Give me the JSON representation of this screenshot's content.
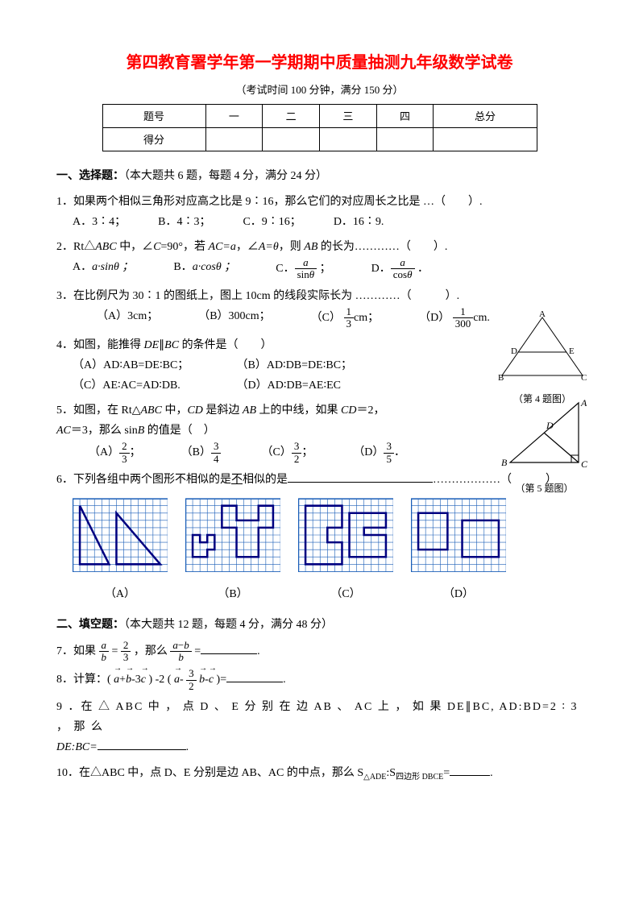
{
  "title": "第四教育署学年第一学期期中质量抽测九年级数学试卷",
  "subtitle": "（考试时间 100 分钟，满分 150 分）",
  "score_table": {
    "headers": [
      "题号",
      "一",
      "二",
      "三",
      "四",
      "总分"
    ],
    "row_label": "得分"
  },
  "section1": {
    "head": "一、选择题：",
    "desc": "（本大题共 6 题，每题 4 分，满分 24 分）",
    "q1": {
      "text": "1．如果两个相似三角形对应高之比是 9∶16，那么它们的对应周长之比是 …（　　）.",
      "opts": [
        "A．3∶4；",
        "B．4∶3；",
        "C．9∶16；",
        "D．16∶9."
      ]
    },
    "q2": {
      "text_a": "2．Rt△",
      "text_b": " 中，∠",
      "text_c": "=90°，若 ",
      "text_d": "，∠",
      "text_e": "，则 ",
      "text_f": " 的长为…………（　　）.",
      "AC_eq_a": "AC=a",
      "A_eq_theta": "A=θ",
      "optA": "A．",
      "optA_val": "a·sinθ ；",
      "optB": "B．",
      "optB_val": "a·cosθ ；",
      "optC": "C．",
      "optD": "D．"
    },
    "q3": {
      "text": "3．在比例尺为 30∶1 的图纸上，图上 10cm 的线段实际长为 …………（　　　）.",
      "optA": "（A）3cm；",
      "optB": "（B）300cm；",
      "optC": "（C）",
      "optD": "（D）",
      "c_suffix": "cm；",
      "d_suffix": "cm."
    },
    "q4": {
      "text": "4．如图，能推得 DE∥BC 的条件是（　　）",
      "opts": [
        "（A）AD∶AB=DE∶BC；",
        "（B）AD∶DB=DE∶BC；",
        "（C）AE∶AC=AD∶DB.",
        "（D）AD∶DB=AE∶EC"
      ],
      "caption": "（第 4 题图）",
      "labels": {
        "A": "A",
        "B": "B",
        "C": "C",
        "D": "D",
        "E": "E"
      }
    },
    "q5": {
      "text_a": "5．如图，在 Rt△",
      "text_b": " 中，",
      "text_c": " 是斜边 ",
      "text_d": " 上的中线，如果 ",
      "text_e": "＝2，",
      "line2_a": "＝3，那么 sin",
      "line2_b": " 的值是（　）",
      "ABC": "ABC",
      "CD": "CD",
      "AB": "AB",
      "CD2": "CD",
      "AC": "AC",
      "B": "B",
      "optA": "（A）",
      "optB": "（B）",
      "optC": "（C）",
      "optD": "（D）",
      "suffix": "；",
      "suffixEnd": "．",
      "caption": "（第 5 题图）",
      "labels": {
        "A": "A",
        "B": "B",
        "C": "C",
        "D": "D"
      }
    },
    "q6": {
      "text": "6．下列各组中两个图形不相似的是",
      "dots": "………………（　　　）",
      "letters": [
        "（A）",
        "（B）",
        "（C）",
        "（D）"
      ],
      "grid": {
        "cols": 13,
        "rows": 10,
        "cell": 9,
        "stroke_grid": "#1a5eb8",
        "stroke_shape": "#000080",
        "shape_width": 2.5
      }
    }
  },
  "section2": {
    "head": "二、填空题：",
    "desc": "（本大题共 12 题，每题 4 分，满分 48 分）",
    "q7": {
      "pre": "7．如果 ",
      "mid": "，那么 ",
      "post": "="
    },
    "q8": {
      "pre": "8．计算：( ",
      "mid_a": "+",
      "mid_b": "-3",
      "mid_c": " ) -2 ( ",
      "mid_d": "- ",
      "mid_e": "-",
      "post": " )=",
      "a": "a",
      "b": "b",
      "c": "c"
    },
    "q9": {
      "text": "9 ．在 △ ABC 中 ， 点 D 、 E 分 别 在 边 AB 、 AC 上 ， 如 果 DE∥BC, AD:BD=2 ∶ 3 ， 那 么",
      "line2_a": "DE:BC=",
      "post": "."
    },
    "q10": {
      "text_a": "10．在△ABC 中，点 D、E 分别是边 AB、AC 的中点，那么 S",
      "sub1": "△ADE",
      "text_b": ":S",
      "sub2": "四边形 DBCE",
      "text_c": "=",
      "post": "."
    }
  },
  "colors": {
    "title": "#ff0000",
    "grid": "#1a5eb8",
    "shape": "#000080"
  }
}
